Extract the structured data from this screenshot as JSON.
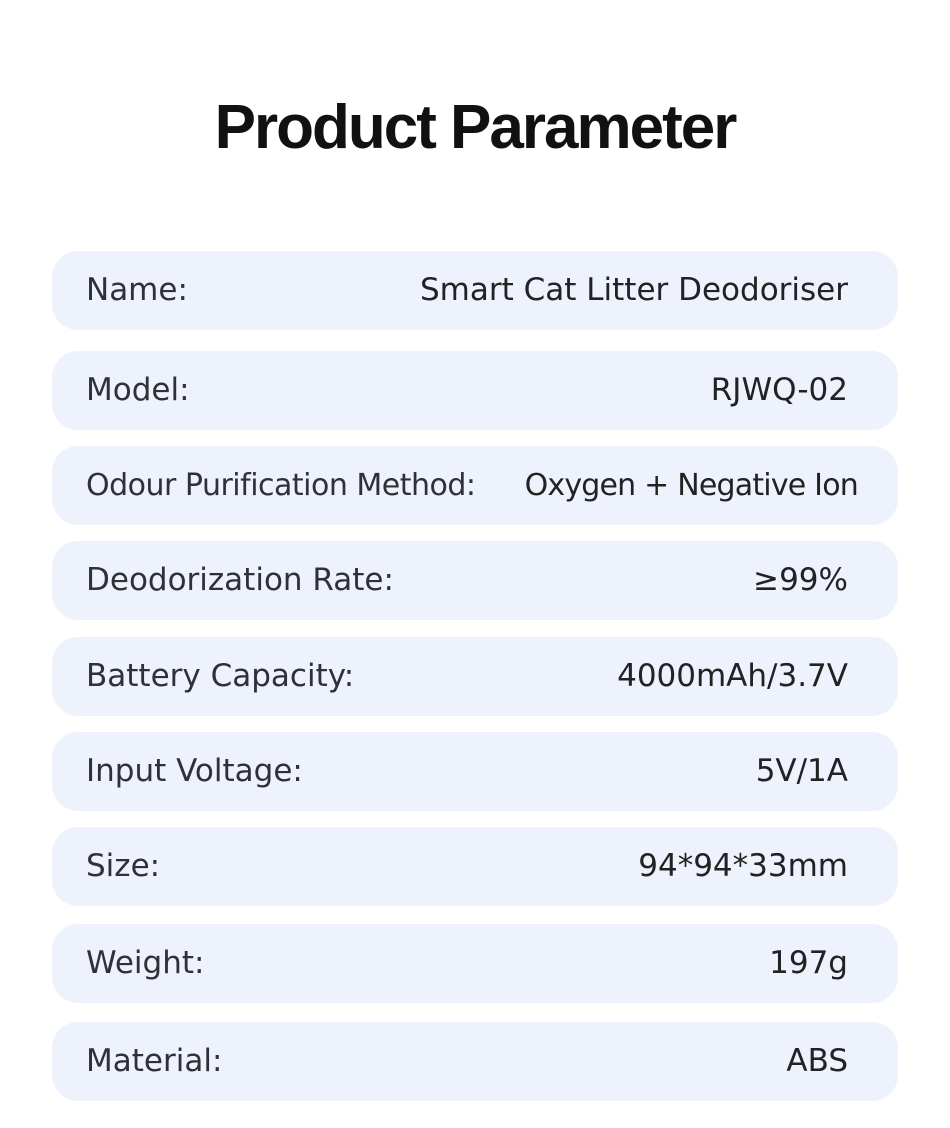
{
  "title": "Product Parameter",
  "params": [
    {
      "label": "Name:",
      "value": "Smart Cat Litter Deodoriser"
    },
    {
      "label": "Model:",
      "value": "RJWQ-02"
    },
    {
      "label": "Odour Purification Method:",
      "value": "Oxygen + Negative Ion"
    },
    {
      "label": "Deodorization Rate:",
      "value": "≥99%"
    },
    {
      "label": "Battery Capacity:",
      "value": "4000mAh/3.7V"
    },
    {
      "label": "Input Voltage:",
      "value": "5V/1A"
    },
    {
      "label": "Size:",
      "value": "94*94*33mm"
    },
    {
      "label": "Weight:",
      "value": "197g"
    },
    {
      "label": "Material:",
      "value": "ABS"
    }
  ]
}
